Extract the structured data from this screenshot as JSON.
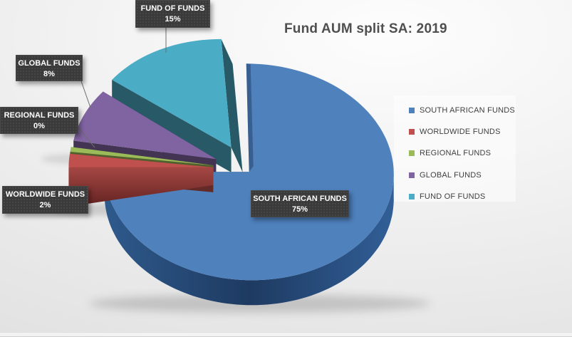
{
  "header": {
    "title": "Fund AUM split SA: 2019"
  },
  "chart_data": {
    "type": "pie",
    "style": "3d-exploded",
    "title": "Fund AUM split SA: 2019",
    "unit": "percent",
    "categories": [
      "SOUTH AFRICAN FUNDS",
      "WORLDWIDE FUNDS",
      "REGIONAL FUNDS",
      "GLOBAL FUNDS",
      "FUND OF FUNDS"
    ],
    "values": [
      75,
      2,
      0,
      8,
      15
    ],
    "colors": [
      "#4F81BD",
      "#C0504D",
      "#9BBB59",
      "#8064A2",
      "#4BACC6"
    ],
    "legend_position": "right",
    "start_angle": "top",
    "direction": "clockwise"
  },
  "callouts": [
    {
      "label": "FUND OF FUNDS",
      "value": "15%"
    },
    {
      "label": "GLOBAL FUNDS",
      "value": "8%"
    },
    {
      "label": "REGIONAL FUNDS",
      "value": "0%"
    },
    {
      "label": "WORLDWIDE FUNDS",
      "value": "2%"
    },
    {
      "label": "SOUTH AFRICAN FUNDS",
      "value": "75%"
    }
  ],
  "legend": {
    "items": [
      {
        "label": "SOUTH AFRICAN FUNDS"
      },
      {
        "label": "WORLDWIDE FUNDS"
      },
      {
        "label": "REGIONAL FUNDS"
      },
      {
        "label": "GLOBAL FUNDS"
      },
      {
        "label": "FUND OF FUNDS"
      }
    ]
  }
}
